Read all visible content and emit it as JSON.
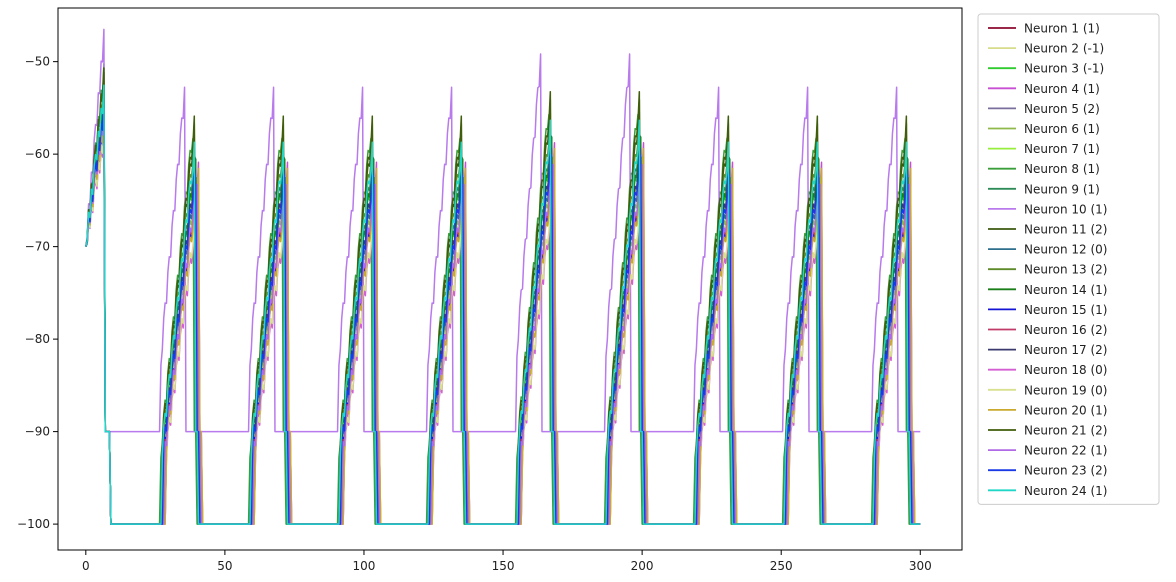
{
  "chart_data": {
    "type": "line",
    "title": "",
    "xlabel": "",
    "ylabel": "",
    "xlim": [
      -10,
      315
    ],
    "ylim": [
      -102.8,
      -44.2
    ],
    "xticks": [
      0,
      50,
      100,
      150,
      200,
      250,
      300
    ],
    "yticks": [
      -100,
      -90,
      -80,
      -70,
      -60,
      -50
    ],
    "xtick_labels": [
      "0",
      "50",
      "100",
      "150",
      "200",
      "250",
      "300"
    ],
    "ytick_labels": [
      "−100",
      "−90",
      "−80",
      "−70",
      "−60",
      "−50"
    ],
    "grid": false,
    "legend_position": "outside-right-top",
    "cycle_period": 32,
    "series": [
      {
        "name": "Neuron 1 (1)",
        "color": "#8b0a2e",
        "peak": -59.5,
        "rise": 0.8,
        "floor": -100,
        "offset": 0.6
      },
      {
        "name": "Neuron 2 (-1)",
        "color": "#d6dc8a",
        "peak": -62.0,
        "rise": 0.7,
        "floor": -100,
        "offset": 1.2
      },
      {
        "name": "Neuron 3 (-1)",
        "color": "#2ecc2e",
        "peak": -60.5,
        "rise": 0.78,
        "floor": -100,
        "offset": 0.4
      },
      {
        "name": "Neuron 4 (1)",
        "color": "#c94fd2",
        "peak": -61.0,
        "rise": 0.72,
        "floor": -100,
        "offset": 1.8
      },
      {
        "name": "Neuron 5 (2)",
        "color": "#7a6f9c",
        "peak": -60.0,
        "rise": 0.76,
        "floor": -100,
        "offset": 0.9
      },
      {
        "name": "Neuron 6 (1)",
        "color": "#8fb94a",
        "peak": -61.5,
        "rise": 0.74,
        "floor": -100,
        "offset": 1.1
      },
      {
        "name": "Neuron 7 (1)",
        "color": "#98ee3c",
        "peak": -60.8,
        "rise": 0.77,
        "floor": -100,
        "offset": 0.7
      },
      {
        "name": "Neuron 8 (1)",
        "color": "#3a9f3a",
        "peak": -56.0,
        "rise": 0.9,
        "floor": -100,
        "offset": 0.0
      },
      {
        "name": "Neuron 9 (1)",
        "color": "#2e8b57",
        "peak": -59.0,
        "rise": 0.8,
        "floor": -100,
        "offset": 0.5
      },
      {
        "name": "Neuron 10 (1)",
        "color": "#b87aec",
        "peak": -52.0,
        "rise": 1.25,
        "floor": -90,
        "offset": -3.0
      },
      {
        "name": "Neuron 11 (2)",
        "color": "#3b5a10",
        "peak": -57.0,
        "rise": 0.88,
        "floor": -100,
        "offset": 0.2
      },
      {
        "name": "Neuron 12 (0)",
        "color": "#2e6f8e",
        "peak": -61.0,
        "rise": 0.75,
        "floor": -100,
        "offset": 1.0
      },
      {
        "name": "Neuron 13 (2)",
        "color": "#5e8a2a",
        "peak": -58.0,
        "rise": 0.84,
        "floor": -100,
        "offset": 0.3
      },
      {
        "name": "Neuron 14 (1)",
        "color": "#1a7f1a",
        "peak": -59.5,
        "rise": 0.81,
        "floor": -100,
        "offset": 0.6
      },
      {
        "name": "Neuron 15 (1)",
        "color": "#1414d4",
        "peak": -62.5,
        "rise": 0.73,
        "floor": -100,
        "offset": 1.3
      },
      {
        "name": "Neuron 16 (2)",
        "color": "#c03a6a",
        "peak": -61.8,
        "rise": 0.74,
        "floor": -100,
        "offset": 1.4
      },
      {
        "name": "Neuron 17 (2)",
        "color": "#3a3a6e",
        "peak": -60.2,
        "rise": 0.79,
        "floor": -100,
        "offset": 0.8
      },
      {
        "name": "Neuron 18 (0)",
        "color": "#d35fd2",
        "peak": -64.0,
        "rise": 0.66,
        "floor": -100,
        "offset": 2.0
      },
      {
        "name": "Neuron 19 (0)",
        "color": "#d9e08f",
        "peak": -63.5,
        "rise": 0.67,
        "floor": -100,
        "offset": 1.9
      },
      {
        "name": "Neuron 20 (1)",
        "color": "#c9aa2e",
        "peak": -62.2,
        "rise": 0.72,
        "floor": -100,
        "offset": 1.6
      },
      {
        "name": "Neuron 21 (2)",
        "color": "#3f5d0a",
        "peak": -56.5,
        "rise": 0.89,
        "floor": -100,
        "offset": 0.1
      },
      {
        "name": "Neuron 22 (1)",
        "color": "#b06ae6",
        "peak": -61.2,
        "rise": 0.75,
        "floor": -100,
        "offset": 1.5
      },
      {
        "name": "Neuron 23 (2)",
        "color": "#1a3ae6",
        "peak": -60.6,
        "rise": 0.77,
        "floor": -100,
        "offset": 0.9
      },
      {
        "name": "Neuron 24 (1)",
        "color": "#20d6c6",
        "peak": -58.5,
        "rise": 0.82,
        "floor": -100,
        "offset": 0.4
      }
    ]
  }
}
